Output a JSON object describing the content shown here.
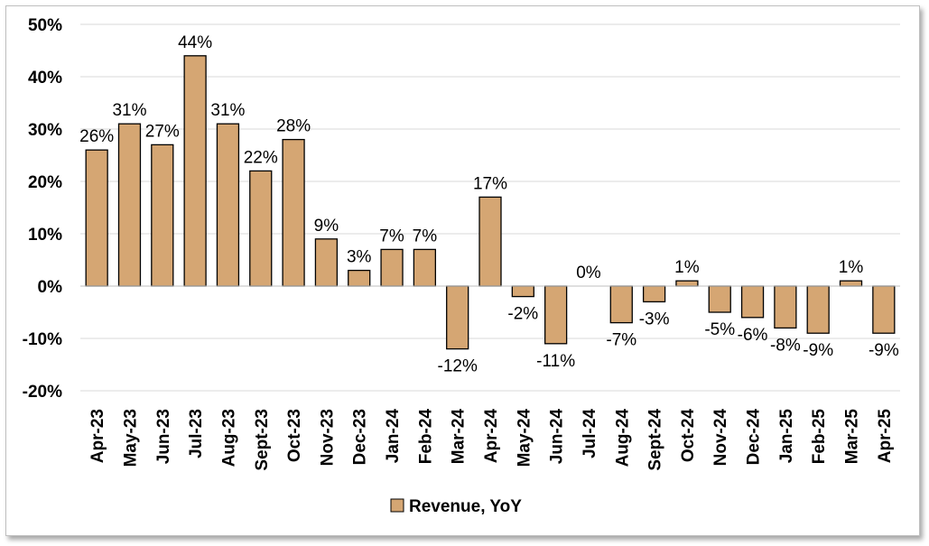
{
  "chart_data": {
    "type": "bar",
    "title": "",
    "xlabel": "",
    "ylabel": "",
    "ylim": [
      -20,
      50
    ],
    "yticks": [
      "-20%",
      "-10%",
      "0%",
      "10%",
      "20%",
      "30%",
      "40%",
      "50%"
    ],
    "ytick_values": [
      -20,
      -10,
      0,
      10,
      20,
      30,
      40,
      50
    ],
    "grid": true,
    "legend_position": "bottom",
    "bar_color": "#D5A673",
    "bar_border_color": "#000000",
    "categories": [
      "Apr-23",
      "May-23",
      "Jun-23",
      "Jul-23",
      "Aug-23",
      "Sept-23",
      "Oct-23",
      "Nov-23",
      "Dec-23",
      "Jan-24",
      "Feb-24",
      "Mar-24",
      "Apr-24",
      "May-24",
      "Jun-24",
      "Jul-24",
      "Aug-24",
      "Sept-24",
      "Oct-24",
      "Nov-24",
      "Dec-24",
      "Jan-25",
      "Feb-25",
      "Mar-25",
      "Apr-25"
    ],
    "series": [
      {
        "name": "Revenue, YoY",
        "values": [
          26,
          31,
          27,
          44,
          31,
          22,
          28,
          9,
          3,
          7,
          7,
          -12,
          17,
          -2,
          -11,
          0,
          -7,
          -3,
          1,
          -5,
          -6,
          -8,
          -9,
          1,
          -9
        ],
        "labels": [
          "26%",
          "31%",
          "27%",
          "44%",
          "31%",
          "22%",
          "28%",
          "9%",
          "3%",
          "7%",
          "7%",
          "-12%",
          "17%",
          "-2%",
          "-11%",
          "0%",
          "-7%",
          "-3%",
          "1%",
          "-5%",
          "-6%",
          "-8%",
          "-9%",
          "1%",
          "-9%"
        ]
      }
    ]
  }
}
